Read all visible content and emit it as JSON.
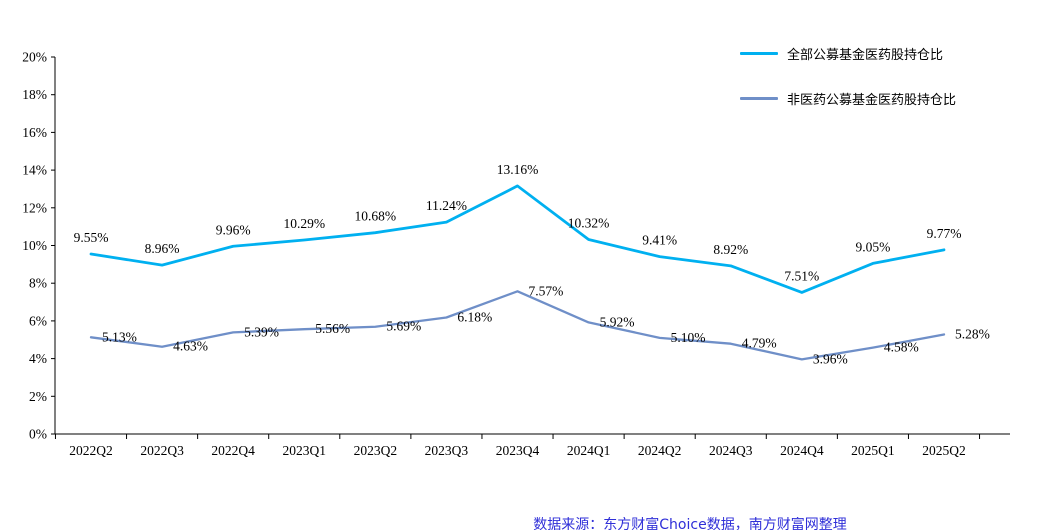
{
  "chart_data": {
    "type": "line",
    "title": "",
    "xlabel": "",
    "ylabel": "",
    "categories": [
      "2022Q2",
      "2022Q3",
      "2022Q4",
      "2023Q1",
      "2023Q2",
      "2023Q3",
      "2023Q4",
      "2024Q1",
      "2024Q2",
      "2024Q3",
      "2024Q4",
      "2025Q1",
      "2025Q2"
    ],
    "series": [
      {
        "name": "全部公募基金医药股持仓比",
        "color": "#00b0f0",
        "values": [
          9.55,
          8.96,
          9.96,
          10.29,
          10.68,
          11.24,
          13.16,
          10.32,
          9.41,
          8.92,
          7.51,
          9.05,
          9.77
        ]
      },
      {
        "name": "非医药公募基金医药股持仓比",
        "color": "#6f8fc8",
        "values": [
          5.13,
          4.63,
          5.39,
          5.56,
          5.69,
          6.18,
          7.57,
          5.92,
          5.1,
          4.79,
          3.96,
          4.58,
          5.28
        ]
      }
    ],
    "ylim": [
      0,
      20
    ],
    "ytick_step": 2,
    "ytick_suffix": "%",
    "grid": false,
    "legend_position": "top-right",
    "data_label_format": "0.00%"
  },
  "footer": {
    "caption": "数据来源：东方财富Choice数据，南方财富网整理"
  }
}
